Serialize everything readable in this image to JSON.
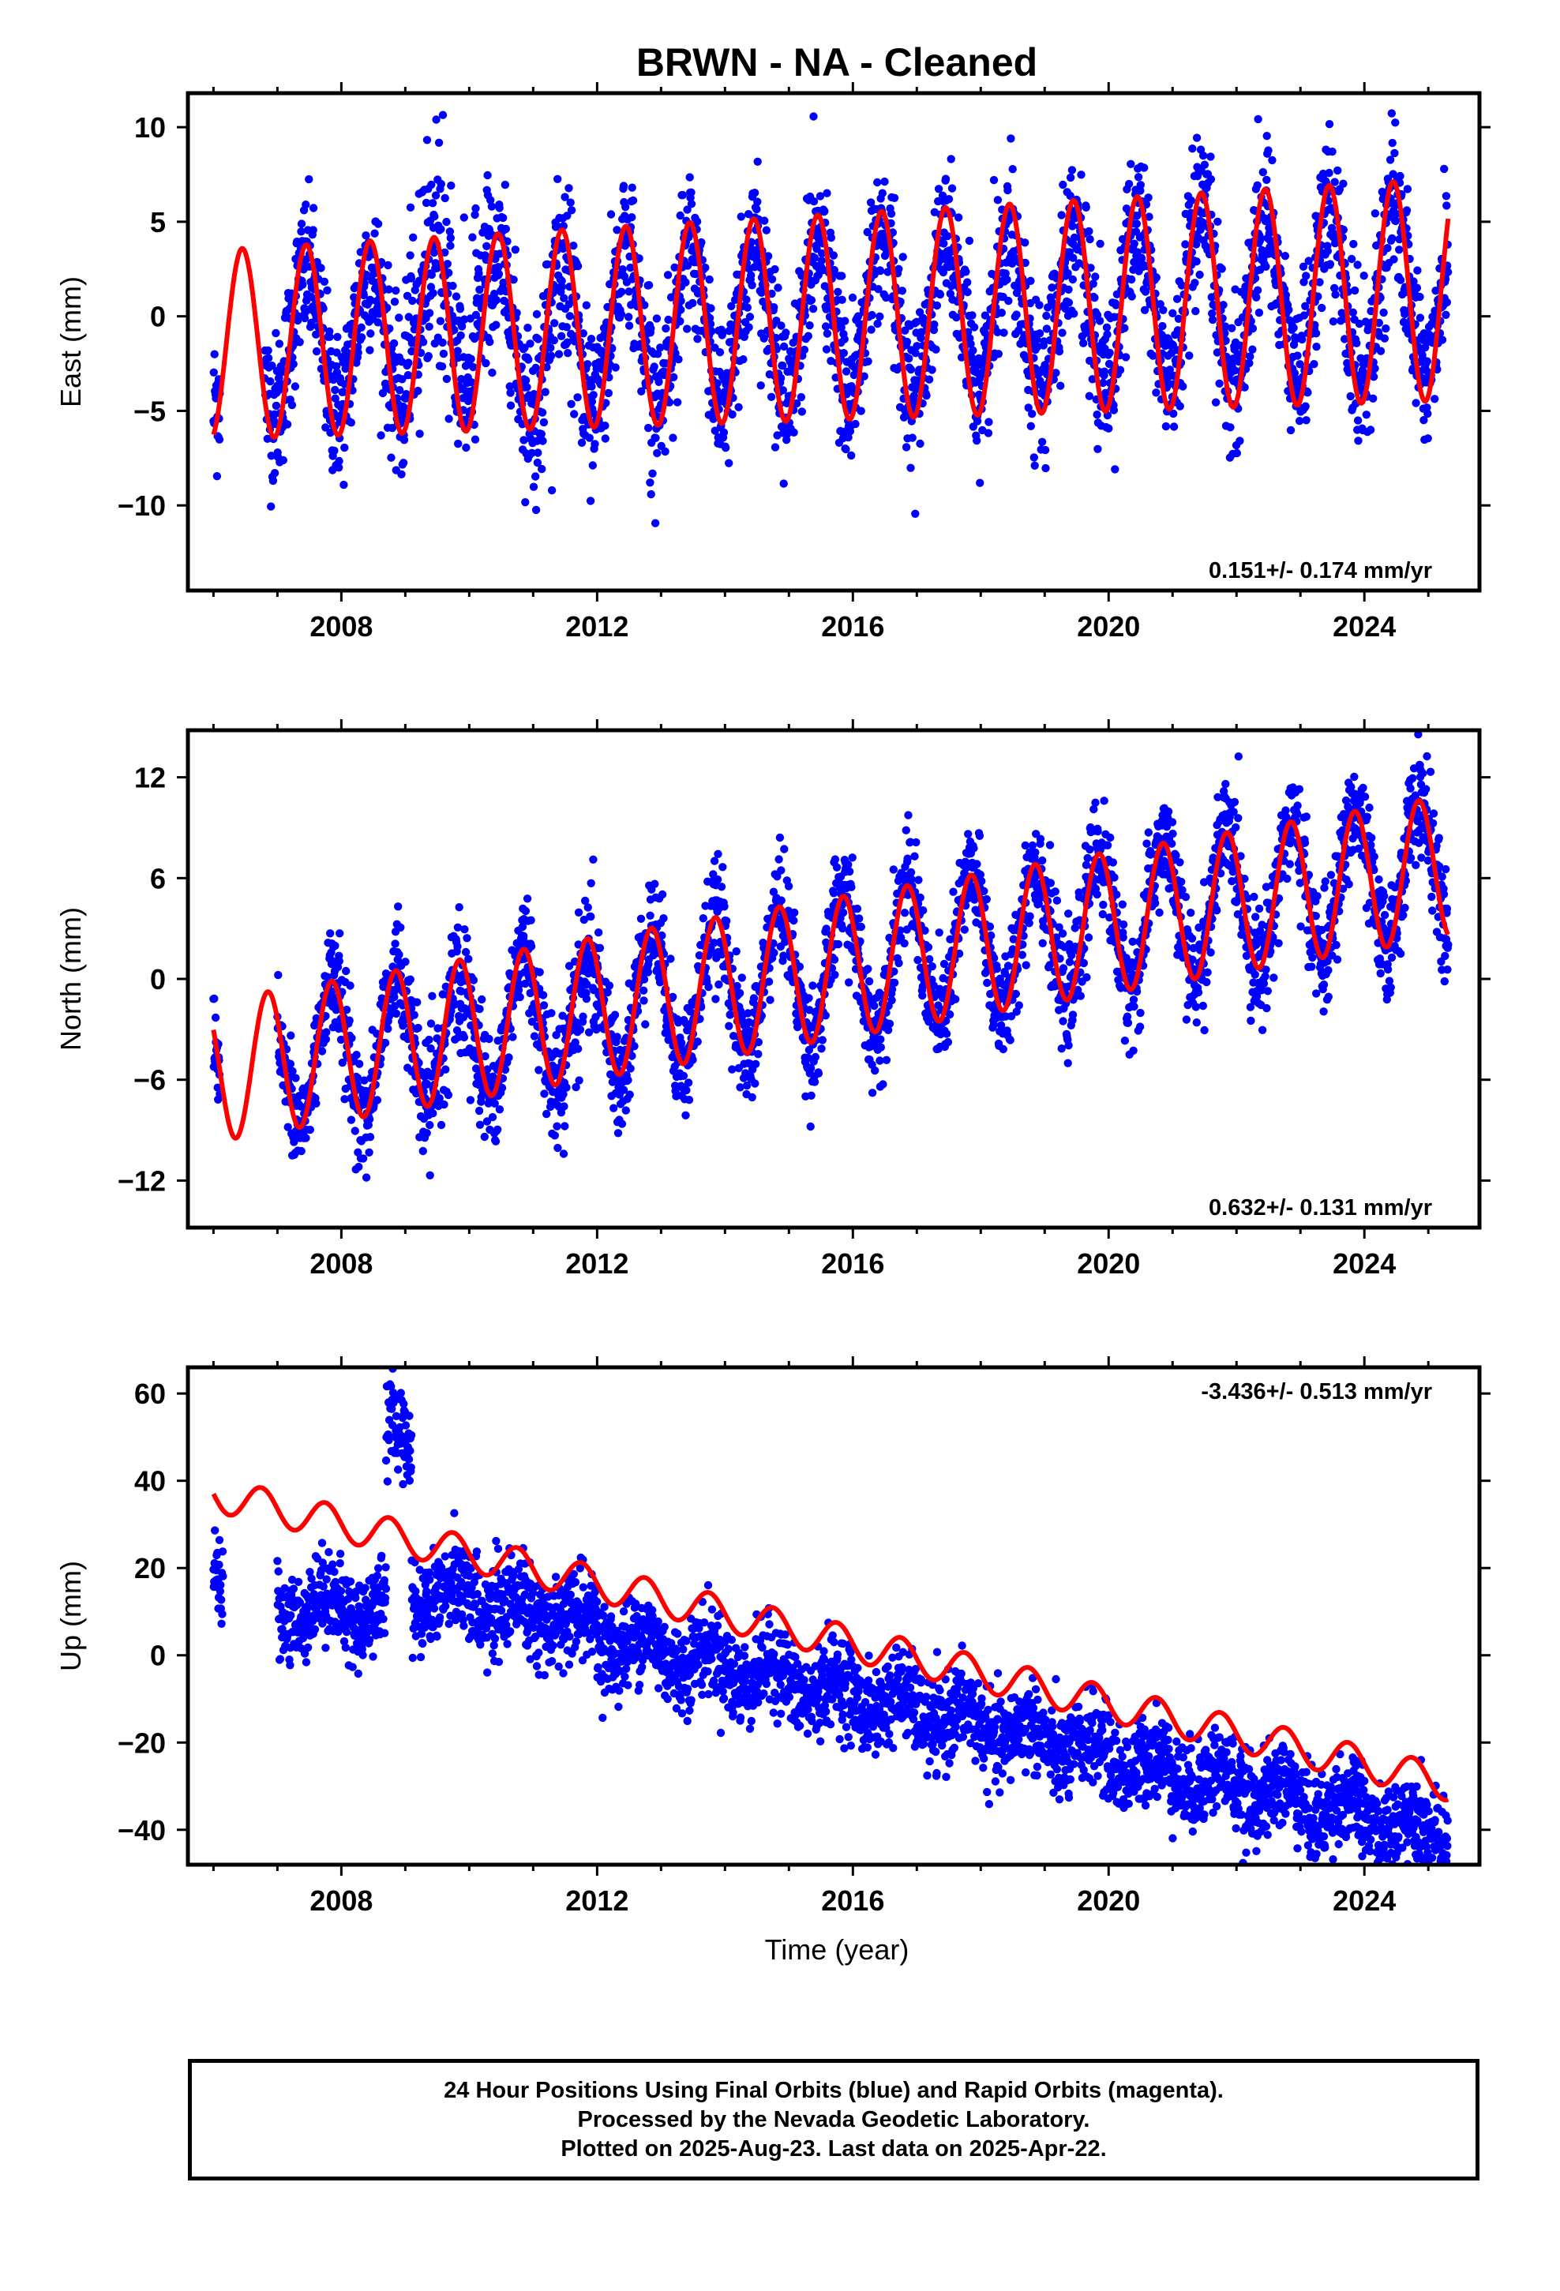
{
  "title": "BRWN  - NA - Cleaned",
  "xlabel": "Time (year)",
  "colors": {
    "points": "#0000ff",
    "model": "#ff0000",
    "axis": "#000000"
  },
  "chart_data": [
    {
      "type": "scatter",
      "ylabel": "East (mm)",
      "rate_label": "0.151+/- 0.174 mm/yr",
      "rate_position": "bottom-right",
      "xlim": [
        2005.6,
        2025.8
      ],
      "ylim": [
        -14.5,
        11.8
      ],
      "xticks": [
        2008,
        2012,
        2016,
        2020,
        2024
      ],
      "xtick_labels": [
        "2008",
        "2012",
        "2016",
        "2020",
        "2024"
      ],
      "yticks": [
        10,
        5,
        0,
        -5,
        -10
      ],
      "ytick_labels": [
        "10",
        "5",
        "0",
        "−5",
        "−10"
      ],
      "series": [
        {
          "style": "points",
          "color": "#0000ff",
          "segments": [
            [
              2006.0,
              2006.1
            ],
            [
              2006.8,
              2025.31
            ]
          ],
          "trend": 0.151,
          "offset": -1.5,
          "amplitude": 3.6,
          "amplitude_growth": 0.1,
          "noise": 2.0,
          "spikes": [
            [
              2009.0,
              2010.3,
              7.0
            ],
            [
              2011.0,
              2012.0,
              -4.0
            ]
          ]
        },
        {
          "style": "line",
          "color": "#ff0000",
          "x_range": [
            2006.0,
            2025.31
          ],
          "trend": 0.151,
          "offset": -1.5,
          "amplitude": 5.0,
          "amplitude_growth": 0.09,
          "phase_year": 2006.2
        }
      ]
    },
    {
      "type": "scatter",
      "ylabel": "North (mm)",
      "rate_label": "0.632+/- 0.131 mm/yr",
      "rate_position": "bottom-right",
      "xlim": [
        2005.6,
        2025.8
      ],
      "ylim": [
        -14.8,
        14.8
      ],
      "xticks": [
        2008,
        2012,
        2016,
        2020,
        2024
      ],
      "xtick_labels": [
        "2008",
        "2012",
        "2016",
        "2020",
        "2024"
      ],
      "yticks": [
        12,
        6,
        0,
        -6,
        -12
      ],
      "ytick_labels": [
        "12",
        "6",
        "0",
        "−6",
        "−12"
      ],
      "series": [
        {
          "style": "points",
          "color": "#0000ff",
          "segments": [
            [
              2006.0,
              2006.1
            ],
            [
              2007.0,
              2025.31
            ]
          ],
          "trend": 0.632,
          "offset": -5.5,
          "amplitude": 4.2,
          "amplitude_growth": 0.0,
          "noise": 1.6,
          "spikes": [
            [
              2009.6,
              2010.2,
              -4.0
            ],
            [
              2011.6,
              2012.0,
              -4.0
            ]
          ]
        },
        {
          "style": "line",
          "color": "#ff0000",
          "x_range": [
            2006.0,
            2025.31
          ],
          "trend": 0.632,
          "offset": -5.5,
          "amplitude": 4.2,
          "amplitude_growth": 0.0,
          "phase_year": 2006.6
        }
      ]
    },
    {
      "type": "scatter",
      "ylabel": "Up (mm)",
      "rate_label": "-3.436+/- 0.513 mm/yr",
      "rate_position": "top-right",
      "xlim": [
        2005.6,
        2025.8
      ],
      "ylim": [
        -48,
        66
      ],
      "xticks": [
        2008,
        2012,
        2016,
        2020,
        2024
      ],
      "xtick_labels": [
        "2008",
        "2012",
        "2016",
        "2020",
        "2024"
      ],
      "yticks": [
        60,
        40,
        20,
        0,
        -20,
        -40
      ],
      "ytick_labels": [
        "60",
        "40",
        "20",
        "0",
        "−20",
        "−40"
      ],
      "series": [
        {
          "style": "points",
          "color": "#0000ff",
          "segments": [
            [
              2006.0,
              2006.15
            ],
            [
              2007.0,
              2008.7
            ],
            [
              2008.7,
              2009.1
            ],
            [
              2009.1,
              2025.31
            ]
          ],
          "segment_means": [
            18,
            11,
            50,
            null
          ],
          "trend": -3.436,
          "offset": 25.0,
          "amplitude": 3.5,
          "amplitude_growth": 0.0,
          "noise": 5.0,
          "spikes": [
            [
              2009.3,
              2012.0,
              6.0
            ]
          ]
        },
        {
          "style": "line",
          "color": "#ff0000",
          "x_range": [
            2006.0,
            2025.31
          ],
          "trend": -3.436,
          "offset": 37.0,
          "amplitude": 4.0,
          "amplitude_growth": 0.0,
          "phase_year": 2006.5,
          "offset_after_2009": -16.0
        }
      ]
    }
  ],
  "footer": {
    "line1": "24 Hour Positions Using Final Orbits (blue) and Rapid Orbits (magenta).",
    "line2": "Processed by the Nevada Geodetic Laboratory.",
    "line3": "Plotted on 2025-Aug-23. Last data on 2025-Apr-22."
  }
}
